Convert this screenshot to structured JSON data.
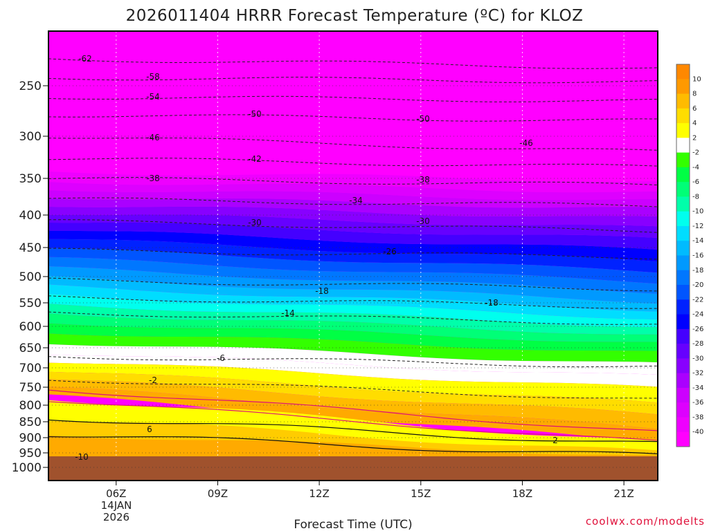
{
  "chart_data": {
    "type": "heatmap",
    "title": "2026011404 HRRR Forecast Temperature (ºC) for KLOZ",
    "xlabel": "Forecast Time (UTC)",
    "ylabel": "",
    "x_ticks": [
      {
        "hour": 6,
        "label": "06Z"
      },
      {
        "hour": 9,
        "label": "09Z"
      },
      {
        "hour": 12,
        "label": "12Z"
      },
      {
        "hour": 15,
        "label": "15Z"
      },
      {
        "hour": 18,
        "label": "18Z"
      },
      {
        "hour": 21,
        "label": "21Z"
      }
    ],
    "date_label_line1": "14JAN",
    "date_label_line2": "2026",
    "xlim": [
      4.0,
      22.0
    ],
    "y_ticks": [
      250,
      300,
      350,
      400,
      450,
      500,
      550,
      600,
      650,
      700,
      750,
      800,
      850,
      900,
      950,
      1000
    ],
    "ylim_hPa": [
      200,
      1025
    ],
    "surface_pressure_hPa": 965,
    "colorbar": {
      "levels": [
        "-40",
        "-38",
        "-36",
        "-34",
        "-32",
        "-30",
        "-28",
        "-26",
        "-24",
        "-22",
        "-20",
        "-18",
        "-16",
        "-14",
        "-12",
        "-10",
        "-8",
        "-6",
        "-4",
        "-2",
        "2",
        "4",
        "6",
        "8",
        "10"
      ],
      "colors": [
        "#ff00ff",
        "#ee00ff",
        "#dd00ff",
        "#cc00ff",
        "#aa00ff",
        "#8800ff",
        "#6600ff",
        "#4400ff",
        "#0000ff",
        "#0022ff",
        "#0055ff",
        "#0077ff",
        "#0099ff",
        "#00bbff",
        "#00ddff",
        "#00ffee",
        "#00ffaa",
        "#00ff77",
        "#00ff44",
        "#33ff00",
        "#ffffff",
        "#ffff00",
        "#ffdd00",
        "#ffbb00",
        "#ff9900",
        "#ff8800"
      ],
      "missing": "#ffffff"
    },
    "contour_labels": [
      "-62",
      "-58",
      "-54",
      "-50",
      "-50",
      "-46",
      "-46",
      "-42",
      "-38",
      "-38",
      "-34",
      "-30",
      "-30",
      "-26",
      "-18",
      "-18",
      "-14",
      "-6",
      "-2",
      "2",
      "6",
      "-10"
    ],
    "credit": "coolwx.com/modelts"
  }
}
